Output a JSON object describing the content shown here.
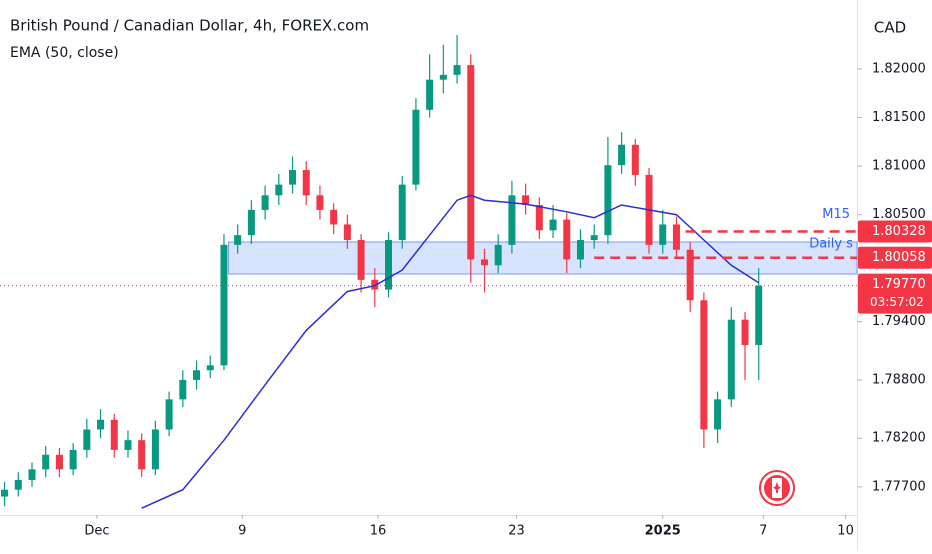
{
  "chart_data": {
    "type": "candlestick",
    "title": "British Pound / Canadian Dollar, 4h, FOREX.com",
    "axis_unit": "CAD",
    "up_color": "#089981",
    "down_color": "#f23645",
    "x": [
      1,
      4,
      7,
      10,
      13,
      16,
      19,
      22,
      25,
      28,
      31,
      34,
      37,
      40,
      43,
      46,
      49,
      52,
      55,
      58,
      61,
      64,
      67,
      70,
      73,
      76,
      79,
      82,
      85,
      88,
      91,
      94,
      97,
      100,
      103,
      106,
      109,
      112,
      115,
      118,
      121,
      124,
      127,
      130,
      133,
      136,
      139,
      142,
      145,
      148,
      151,
      154,
      157,
      160,
      163,
      166
    ],
    "ohlc": [
      [
        1.776,
        1.7775,
        1.775,
        1.7767
      ],
      [
        1.7767,
        1.7785,
        1.776,
        1.7777
      ],
      [
        1.7777,
        1.7795,
        1.777,
        1.7788
      ],
      [
        1.7788,
        1.7812,
        1.778,
        1.7803
      ],
      [
        1.7803,
        1.781,
        1.778,
        1.7788
      ],
      [
        1.7788,
        1.7815,
        1.7782,
        1.7808
      ],
      [
        1.7808,
        1.784,
        1.78,
        1.7829
      ],
      [
        1.7829,
        1.785,
        1.782,
        1.7839
      ],
      [
        1.7839,
        1.7845,
        1.78,
        1.7808
      ],
      [
        1.7808,
        1.7828,
        1.78,
        1.7818
      ],
      [
        1.7818,
        1.7825,
        1.778,
        1.7788
      ],
      [
        1.7788,
        1.7838,
        1.7782,
        1.7829
      ],
      [
        1.7829,
        1.7868,
        1.7822,
        1.786
      ],
      [
        1.786,
        1.789,
        1.7852,
        1.788
      ],
      [
        1.788,
        1.79,
        1.787,
        1.789
      ],
      [
        1.789,
        1.7905,
        1.7882,
        1.7895
      ],
      [
        1.7895,
        1.803,
        1.789,
        1.8019
      ],
      [
        1.8019,
        1.804,
        1.801,
        1.8029
      ],
      [
        1.8029,
        1.8065,
        1.802,
        1.8055
      ],
      [
        1.8055,
        1.808,
        1.8045,
        1.807
      ],
      [
        1.807,
        1.8092,
        1.806,
        1.8081
      ],
      [
        1.8081,
        1.811,
        1.8072,
        1.8096
      ],
      [
        1.8096,
        1.8105,
        1.806,
        1.807
      ],
      [
        1.807,
        1.808,
        1.8045,
        1.8055
      ],
      [
        1.8055,
        1.8062,
        1.803,
        1.804
      ],
      [
        1.804,
        1.805,
        1.8015,
        1.8024
      ],
      [
        1.8024,
        1.803,
        1.797,
        1.7983
      ],
      [
        1.7983,
        1.7995,
        1.7955,
        1.7973
      ],
      [
        1.7973,
        1.8032,
        1.7965,
        1.8024
      ],
      [
        1.8024,
        1.809,
        1.8015,
        1.8081
      ],
      [
        1.8081,
        1.817,
        1.8075,
        1.8158
      ],
      [
        1.8158,
        1.8215,
        1.815,
        1.8189
      ],
      [
        1.8189,
        1.8225,
        1.8175,
        1.8194
      ],
      [
        1.8194,
        1.8235,
        1.8185,
        1.8204
      ],
      [
        1.8204,
        1.8215,
        1.798,
        1.8004
      ],
      [
        1.8004,
        1.8015,
        1.797,
        1.7998
      ],
      [
        1.7998,
        1.803,
        1.799,
        1.8019
      ],
      [
        1.8019,
        1.8085,
        1.801,
        1.807
      ],
      [
        1.807,
        1.8082,
        1.805,
        1.806
      ],
      [
        1.806,
        1.8068,
        1.8025,
        1.8034
      ],
      [
        1.8034,
        1.806,
        1.8026,
        1.8045
      ],
      [
        1.8045,
        1.8052,
        1.799,
        1.8004
      ],
      [
        1.8004,
        1.8035,
        1.7995,
        1.8024
      ],
      [
        1.8024,
        1.804,
        1.8015,
        1.8029
      ],
      [
        1.8029,
        1.813,
        1.802,
        1.8101
      ],
      [
        1.8101,
        1.8135,
        1.8092,
        1.8122
      ],
      [
        1.8122,
        1.8128,
        1.808,
        1.8091
      ],
      [
        1.8091,
        1.8098,
        1.801,
        1.8019
      ],
      [
        1.8019,
        1.8055,
        1.801,
        1.804
      ],
      [
        1.804,
        1.8048,
        1.8005,
        1.8014
      ],
      [
        1.8014,
        1.8022,
        1.795,
        1.7962
      ],
      [
        1.7962,
        1.797,
        1.781,
        1.7829
      ],
      [
        1.7829,
        1.7868,
        1.7815,
        1.786
      ],
      [
        1.786,
        1.7955,
        1.7852,
        1.7942
      ],
      [
        1.7942,
        1.795,
        1.788,
        1.7916
      ],
      [
        1.7916,
        1.7995,
        1.788,
        1.7977
      ]
    ],
    "ema": {
      "name": "EMA (50, close)",
      "color": "#2a2ed6",
      "x": [
        31,
        40,
        49,
        58,
        67,
        76,
        82,
        88,
        94,
        100,
        103,
        106,
        115,
        124,
        130,
        136,
        142,
        148,
        154,
        160,
        166
      ],
      "values": [
        1.7748,
        1.7767,
        1.7818,
        1.7875,
        1.7931,
        1.7971,
        1.7977,
        1.7993,
        1.8029,
        1.8065,
        1.807,
        1.8065,
        1.8061,
        1.8053,
        1.8047,
        1.806,
        1.8055,
        1.805,
        1.8024,
        1.7998,
        1.798
      ]
    },
    "zone": {
      "label": "Daily s",
      "top": 1.8022,
      "bottom": 1.7989,
      "start": 50,
      "color": "#2962ff"
    },
    "levels": [
      {
        "name": "M15",
        "value": 1.80328,
        "label": "1.80328",
        "start": 150,
        "color": "#f23645"
      },
      {
        "value": 1.80058,
        "label": "1.80058",
        "start": 130,
        "color": "#f23645"
      }
    ],
    "current": {
      "value": 1.7977,
      "label": "1.79770",
      "countdown": "03:57:02",
      "color": "#f23645"
    },
    "xlim": [
      0,
      187.5
    ],
    "ylim": [
      1.7741,
      1.8271
    ],
    "yticks": [
      {
        "value": 1.82,
        "label": "1.82000"
      },
      {
        "value": 1.815,
        "label": "1.81500"
      },
      {
        "value": 1.81,
        "label": "1.81000"
      },
      {
        "value": 1.805,
        "label": "1.80500"
      },
      {
        "value": 1.794,
        "label": "1.79400"
      },
      {
        "value": 1.788,
        "label": "1.78800"
      },
      {
        "value": 1.782,
        "label": "1.78200"
      },
      {
        "value": 1.777,
        "label": "1.77700"
      }
    ],
    "xticks": [
      {
        "value": 21.2,
        "label": "Dec"
      },
      {
        "value": 53,
        "label": "9"
      },
      {
        "value": 82.7,
        "label": "16"
      },
      {
        "value": 113,
        "label": "23"
      },
      {
        "value": 145,
        "label": "2025"
      },
      {
        "value": 167,
        "label": "7"
      },
      {
        "value": 185,
        "label": "10"
      }
    ]
  }
}
